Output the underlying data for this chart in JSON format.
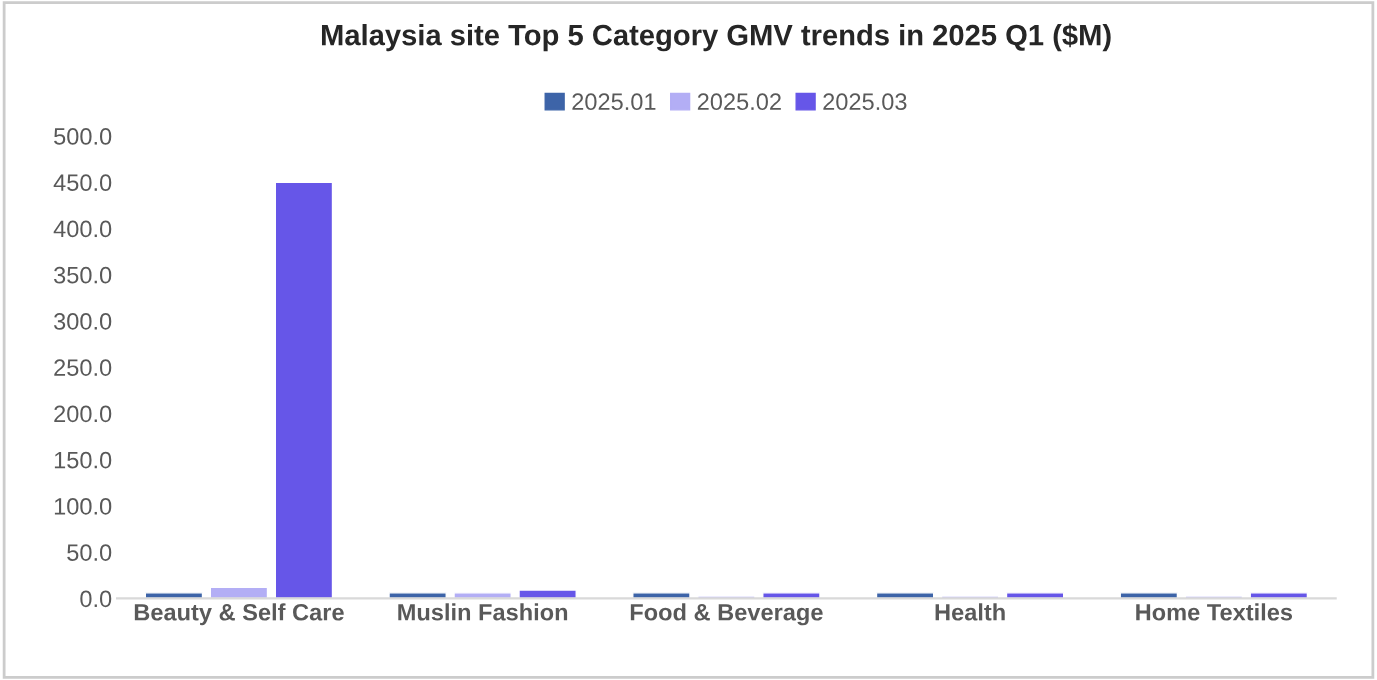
{
  "chart_data": {
    "type": "bar",
    "title": "Malaysia site Top 5 Category GMV trends in 2025 Q1 ($M)",
    "categories": [
      "Beauty & Self Care",
      "Muslin Fashion",
      "Food & Beverage",
      "Health",
      "Home Textiles"
    ],
    "series": [
      {
        "name": "2025.01",
        "color": "#3d64a8",
        "values": [
          6,
          6,
          6,
          6,
          6
        ]
      },
      {
        "name": "2025.02",
        "color": "#b3aef5",
        "values": [
          12,
          6,
          2.5,
          2.5,
          2.5
        ]
      },
      {
        "name": "2025.03",
        "color": "#6656e8",
        "values": [
          450,
          9,
          6,
          6,
          6
        ]
      }
    ],
    "ylim": [
      0,
      500
    ],
    "yticks": [
      {
        "value": 0,
        "label": "0.0"
      },
      {
        "value": 50,
        "label": "50.0"
      },
      {
        "value": 100,
        "label": "100.0"
      },
      {
        "value": 150,
        "label": "150.0"
      },
      {
        "value": 200,
        "label": "200.0"
      },
      {
        "value": 250,
        "label": "250.0"
      },
      {
        "value": 300,
        "label": "300.0"
      },
      {
        "value": 350,
        "label": "350.0"
      },
      {
        "value": 400,
        "label": "400.0"
      },
      {
        "value": 450,
        "label": "450.0"
      },
      {
        "value": 500,
        "label": "500.0"
      }
    ],
    "grid": false,
    "legend": "top"
  }
}
